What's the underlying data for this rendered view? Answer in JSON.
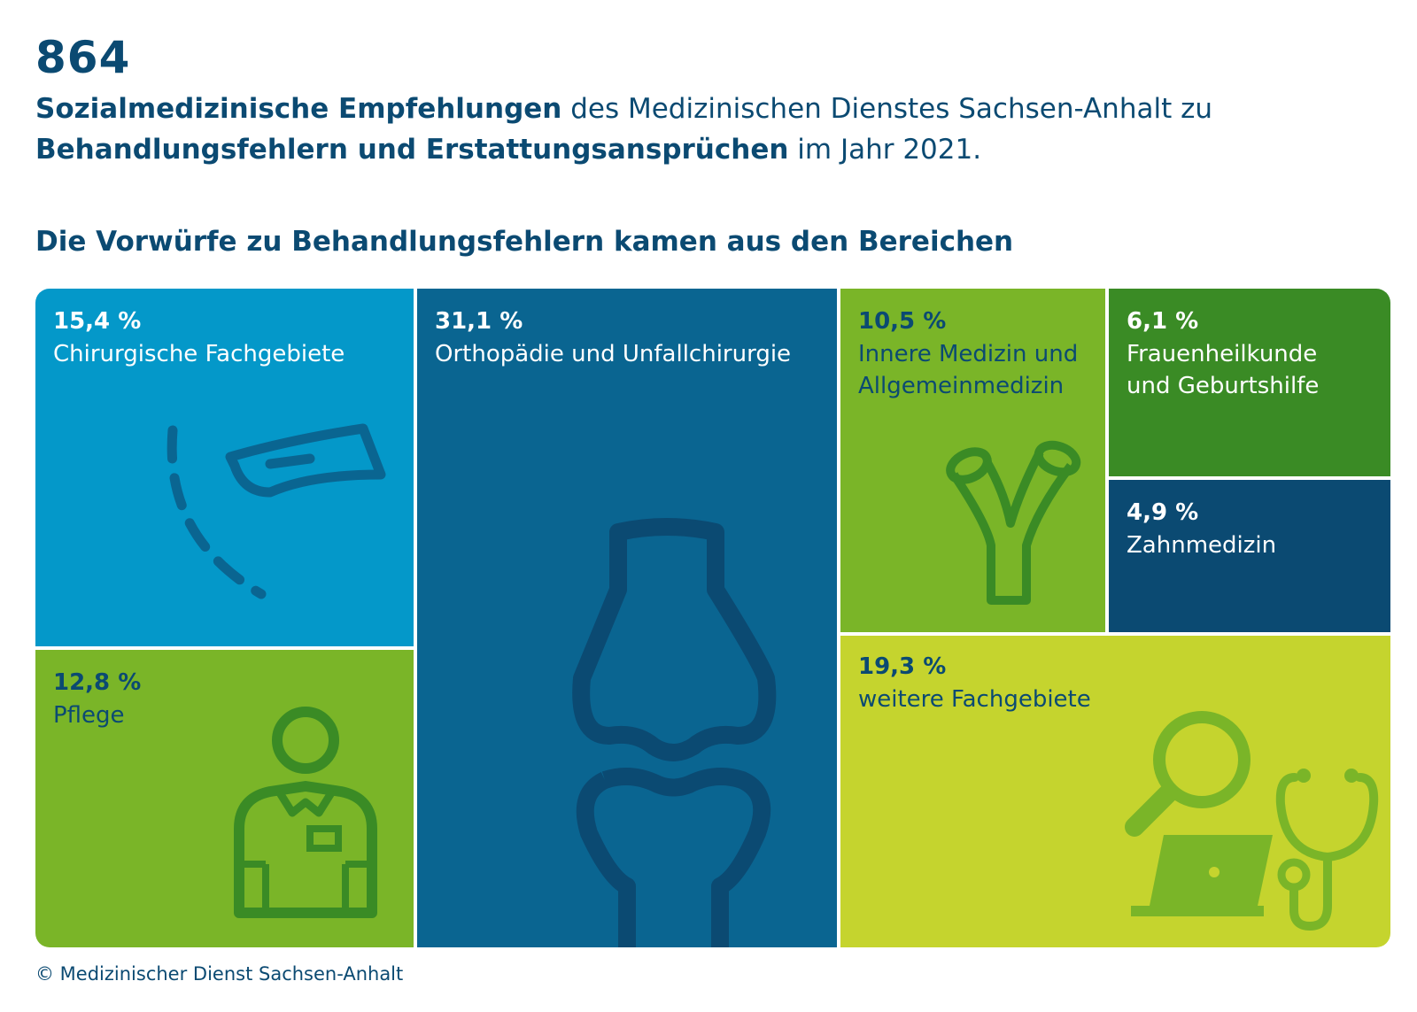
{
  "header": {
    "big_number": "864",
    "line1_bold": "Sozialmedizinische Empfehlungen",
    "line1_rest": " des Medizinischen Dienstes Sachsen-Anhalt zu",
    "line2_bold": "Behandlungsfehlern und Erstattungsansprüchen",
    "line2_rest": " im Jahr 2021."
  },
  "section_title": "Die Vorwürfe zu Behandlungsfehlern kamen aus den Bereichen",
  "colors": {
    "chirurgie": "#0498c9",
    "pflege": "#7ab528",
    "orthopaedie": "#0a6591",
    "innere": "#7ab528",
    "frauen": "#3a8b25",
    "zahn": "#0b4a72",
    "weitere": "#c5d42e",
    "text_dark": "#0b4a72"
  },
  "chart_data": {
    "type": "treemap",
    "unit": "%",
    "categories": [
      "Chirurgische Fachgebiete",
      "Pflege",
      "Orthopädie und Unfallchirurgie",
      "Innere Medizin und Allgemeinmedizin",
      "Frauenheilkunde und Geburtshilfe",
      "Zahnmedizin",
      "weitere Fachgebiete"
    ],
    "values": [
      15.4,
      12.8,
      31.1,
      10.5,
      6.1,
      4.9,
      19.3
    ],
    "items": [
      {
        "pct_label": "15,4 %",
        "label_lines": [
          "Chirurgische Fachgebiete"
        ],
        "icon": "scalpel-icon"
      },
      {
        "pct_label": "12,8 %",
        "label_lines": [
          "Pflege"
        ],
        "icon": "nurse-icon"
      },
      {
        "pct_label": "31,1 %",
        "label_lines": [
          "Orthopädie und Unfallchirurgie"
        ],
        "icon": "knee-bone-icon"
      },
      {
        "pct_label": "10,5 %",
        "label_lines": [
          "Innere Medizin und",
          "Allgemeinmedizin"
        ],
        "icon": "bronchi-icon"
      },
      {
        "pct_label": "6,1 %",
        "label_lines": [
          "Frauenheilkunde",
          "und Geburtshilfe"
        ],
        "icon": ""
      },
      {
        "pct_label": "4,9 %",
        "label_lines": [
          "Zahnmedizin"
        ],
        "icon": ""
      },
      {
        "pct_label": "19,3 %",
        "label_lines": [
          "weitere Fachgebiete"
        ],
        "icon": "magnifier-laptop-stethoscope-icon"
      }
    ]
  },
  "footer": "© Medizinischer Dienst Sachsen-Anhalt"
}
